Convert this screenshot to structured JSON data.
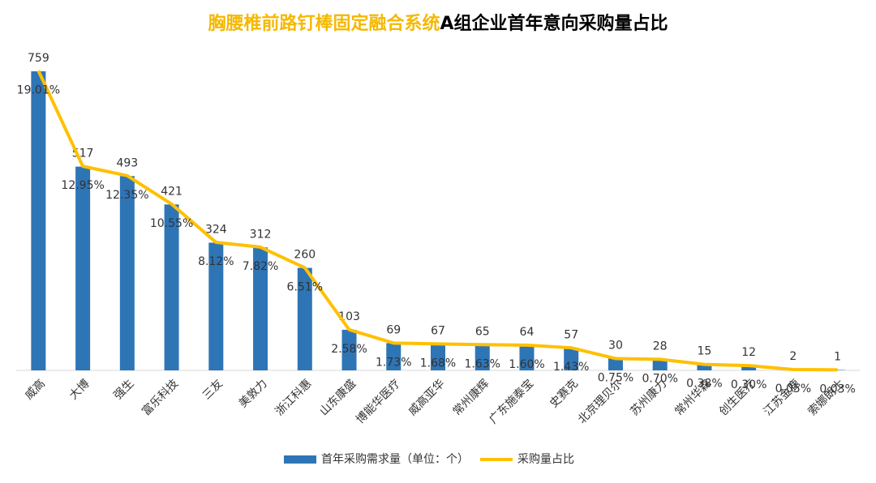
{
  "chart_data": {
    "type": "bar_line",
    "title": [
      "胸腰椎前路钉棒固定融合系统",
      "A组企业首年意向采购量占比"
    ],
    "title_colors": [
      "#f5b800",
      "#000000"
    ],
    "categories": [
      "威高",
      "大博",
      "强生",
      "富乐科技",
      "三友",
      "美敦力",
      "浙江科惠",
      "山东康盛",
      "博能华医疗",
      "威高亚华",
      "常州康辉",
      "广东施泰宝",
      "史赛克",
      "北京理贝尔",
      "苏州康力",
      "常州华森",
      "创生医疗",
      "江苏金鹿",
      "索娜朗士"
    ],
    "ylim": [
      0,
      800
    ],
    "y2lim": [
      0,
      20
    ],
    "legend": "bottom",
    "series": [
      {
        "name": "首年采购需求量（单位：个）",
        "type": "bar",
        "color": "#2e75b6",
        "values": [
          759,
          517,
          493,
          421,
          324,
          312,
          260,
          103,
          69,
          67,
          65,
          64,
          57,
          30,
          28,
          15,
          12,
          2,
          1
        ]
      },
      {
        "name": "采购量占比",
        "type": "line",
        "axis": "y2",
        "color": "#ffc000",
        "values": [
          19.01,
          12.95,
          12.35,
          10.55,
          8.12,
          7.82,
          6.51,
          2.58,
          1.73,
          1.68,
          1.63,
          1.6,
          1.43,
          0.75,
          0.7,
          0.38,
          0.3,
          0.05,
          0.03
        ],
        "value_labels": [
          "19.01%",
          "12.95%",
          "12.35%",
          "10.55%",
          "8.12%",
          "7.82%",
          "6.51%",
          "2.58%",
          "1.73%",
          "1.68%",
          "1.63%",
          "1.60%",
          "1.43%",
          "0.75%",
          "0.70%",
          "0.38%",
          "0.30%",
          "0.05%",
          "0.03%"
        ]
      }
    ]
  }
}
